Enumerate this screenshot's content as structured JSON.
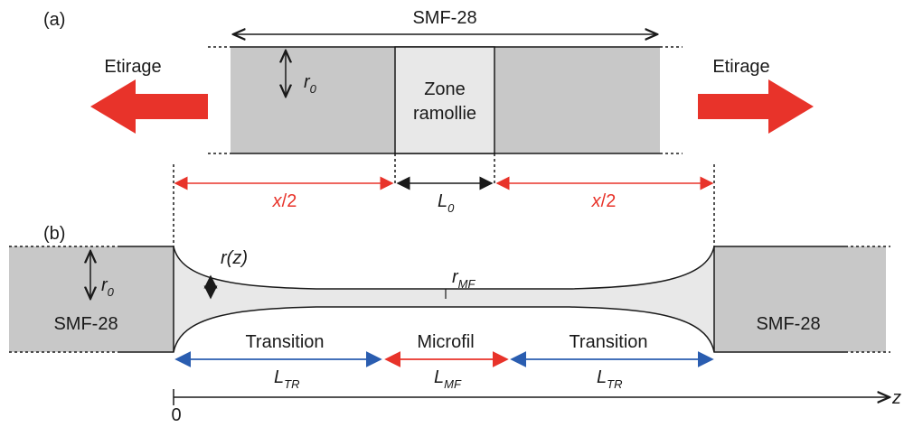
{
  "part_a": {
    "label": "(a)",
    "fiber_label": "SMF-28",
    "stretch_left": "Etirage",
    "stretch_right": "Etirage",
    "radius": {
      "symbol": "r",
      "subscript": "0"
    },
    "softened_zone": [
      "Zone",
      "ramollie"
    ],
    "half_elongation_left": {
      "variable": "x",
      "rest": "/2"
    },
    "half_elongation_right": {
      "variable": "x",
      "rest": "/2"
    },
    "initial_length": {
      "symbol": "L",
      "subscript": "0"
    }
  },
  "part_b": {
    "label": "(b)",
    "radius": {
      "symbol": "r",
      "subscript": "0"
    },
    "fiber_left": "SMF-28",
    "fiber_right": "SMF-28",
    "radius_profile": "r(z)",
    "microfiber_radius": {
      "symbol": "r",
      "subscript": "MF"
    },
    "sections": [
      "Transition",
      "Microfil",
      "Transition"
    ],
    "lengths": [
      {
        "symbol": "L",
        "subscript": "TR"
      },
      {
        "symbol": "L",
        "subscript": "MF"
      },
      {
        "symbol": "L",
        "subscript": "TR"
      }
    ],
    "axis_origin": "0",
    "axis_label": "z"
  }
}
